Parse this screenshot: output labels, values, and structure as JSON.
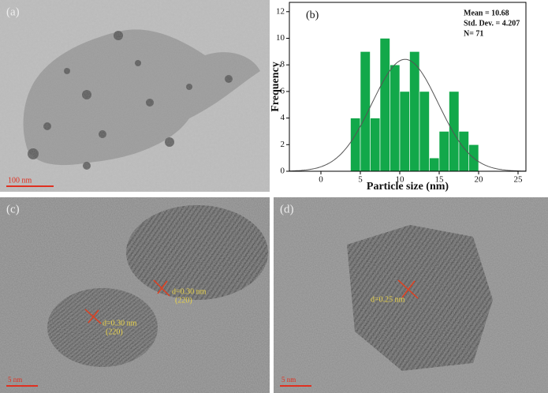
{
  "panels": {
    "a": {
      "label": "(a)",
      "scale_bar": "100 nm"
    },
    "c": {
      "label": "(c)",
      "scale_bar": "5 nm",
      "fringes": [
        "d=0.30 nm",
        "(220)",
        "d=0.30 nm",
        "(220)"
      ]
    },
    "d": {
      "label": "(d)",
      "scale_bar": "5 nm",
      "fringes": [
        "d=0.25 nm"
      ]
    }
  },
  "chart_data": {
    "type": "histogram",
    "label": "(b)",
    "x_label": "Particle size (nm)",
    "y_label": "Frequency",
    "bins": [
      3.75,
      5,
      6.25,
      7.5,
      8.75,
      10,
      11.25,
      12.5,
      13.75,
      15,
      16.25,
      17.5,
      18.75,
      20
    ],
    "values": [
      4,
      9,
      4,
      10,
      8,
      6,
      9,
      6,
      1,
      3,
      6,
      3,
      2
    ],
    "color": "#12a84a",
    "fit": {
      "mean": 10.68,
      "std": 4.207
    },
    "annotations": [
      "Mean = 10.68",
      "Std. Dev. = 4.207",
      "N= 71"
    ],
    "xlim": [
      -4,
      26
    ],
    "xticks": [
      0,
      5,
      10,
      15,
      20,
      25
    ],
    "ylim": [
      0,
      12.7
    ],
    "yticks": [
      0,
      2,
      4,
      6,
      8,
      10,
      12
    ]
  }
}
